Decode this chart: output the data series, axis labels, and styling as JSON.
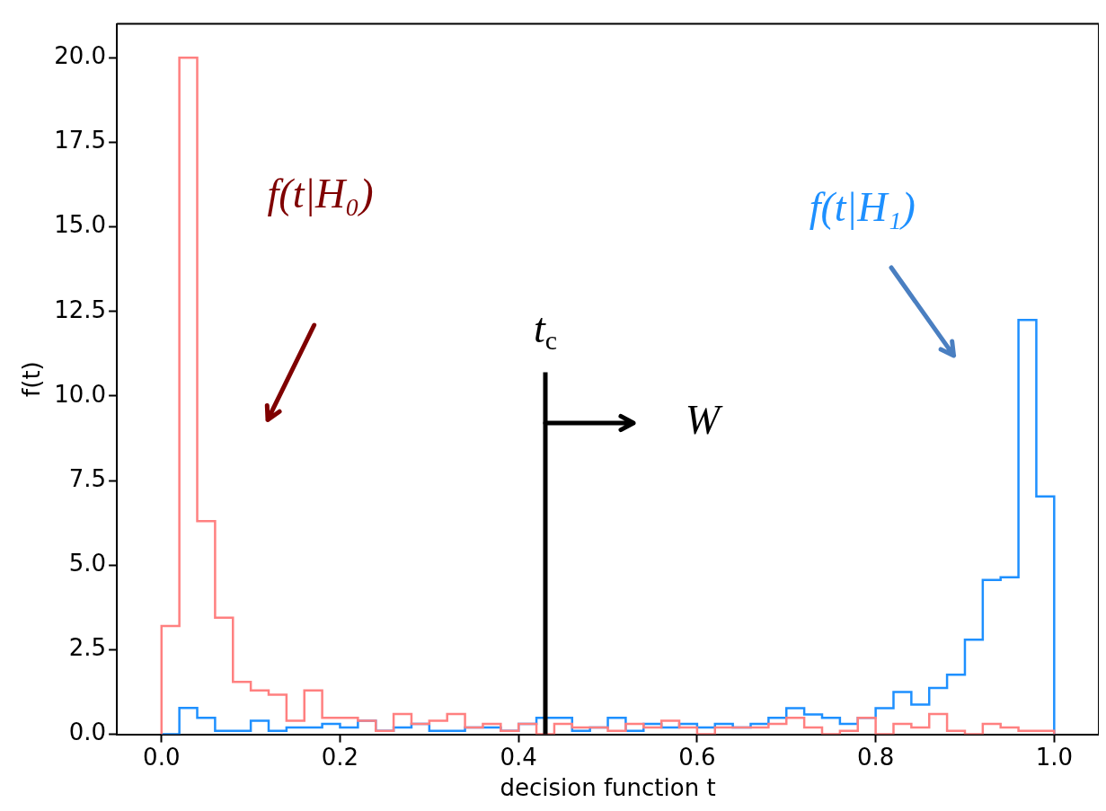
{
  "chart_data": {
    "type": "histogram",
    "xlabel": "decision function t",
    "ylabel": "f(t)",
    "bins": [
      0,
      0.02,
      0.04,
      0.06,
      0.08,
      0.1,
      0.12,
      0.14,
      0.16,
      0.18,
      0.2,
      0.22,
      0.24,
      0.26,
      0.28,
      0.3,
      0.32,
      0.34,
      0.36,
      0.38,
      0.4,
      0.42,
      0.44,
      0.46,
      0.48,
      0.5,
      0.52,
      0.54,
      0.56,
      0.58,
      0.6,
      0.62,
      0.64,
      0.66,
      0.68,
      0.7,
      0.72,
      0.74,
      0.76,
      0.78,
      0.8,
      0.82,
      0.84,
      0.86,
      0.88,
      0.9,
      0.92,
      0.94,
      0.96,
      0.98,
      1.0
    ],
    "series": [
      {
        "color": "#ff8080",
        "values": [
          3.2,
          20.0,
          6.3,
          3.45,
          1.55,
          1.3,
          1.17,
          0.4,
          1.3,
          0.49,
          0.49,
          0.4,
          0.1,
          0.6,
          0.31,
          0.4,
          0.6,
          0.2,
          0.31,
          0.1,
          0.31,
          0,
          0.31,
          0.2,
          0.2,
          0.1,
          0.31,
          0.2,
          0.4,
          0.2,
          0,
          0.2,
          0.2,
          0.2,
          0.31,
          0.49,
          0.2,
          0,
          0.1,
          0.49,
          0,
          0.31,
          0.2,
          0.6,
          0.1,
          0,
          0.31,
          0.2,
          0.1,
          0.1
        ]
      },
      {
        "color": "#1e90ff",
        "values": [
          0,
          0.78,
          0.49,
          0.1,
          0.1,
          0.4,
          0.1,
          0.2,
          0.2,
          0.31,
          0.2,
          0.4,
          0.1,
          0.2,
          0.31,
          0.1,
          0.1,
          0.2,
          0.2,
          0.1,
          0.31,
          0.49,
          0.49,
          0.1,
          0.2,
          0.49,
          0.1,
          0.31,
          0.2,
          0.31,
          0.2,
          0.31,
          0.2,
          0.31,
          0.49,
          0.77,
          0.59,
          0.49,
          0.31,
          0.49,
          0.77,
          1.25,
          0.88,
          1.37,
          1.76,
          2.8,
          4.56,
          4.64,
          12.25,
          7.03
        ]
      }
    ],
    "xlim": [
      -0.05,
      1.05
    ],
    "ylim": [
      0,
      21
    ],
    "xticks": [
      {
        "value": 0,
        "label": "0.0"
      },
      {
        "value": 0.2,
        "label": "0.2"
      },
      {
        "value": 0.4,
        "label": "0.4"
      },
      {
        "value": 0.6,
        "label": "0.6"
      },
      {
        "value": 0.8,
        "label": "0.8"
      },
      {
        "value": 1.0,
        "label": "1.0"
      }
    ],
    "yticks": [
      {
        "value": 0,
        "label": "0.0"
      },
      {
        "value": 2.5,
        "label": "2.5"
      },
      {
        "value": 5,
        "label": "5.0"
      },
      {
        "value": 7.5,
        "label": "7.5"
      },
      {
        "value": 10,
        "label": "10.0"
      },
      {
        "value": 12.5,
        "label": "12.5"
      },
      {
        "value": 15,
        "label": "15.0"
      },
      {
        "value": 17.5,
        "label": "17.5"
      },
      {
        "value": 20,
        "label": "20.0"
      }
    ],
    "ref_lines": [
      {
        "axis": "x",
        "value": 0.43,
        "label": "t$_{c}$",
        "color": "#000000"
      }
    ],
    "annotations": [
      "f(t|H₀)",
      "f(t|H₁)",
      {
        "text": "W",
        "x": 0.43,
        "y": 9.2
      }
    ]
  }
}
